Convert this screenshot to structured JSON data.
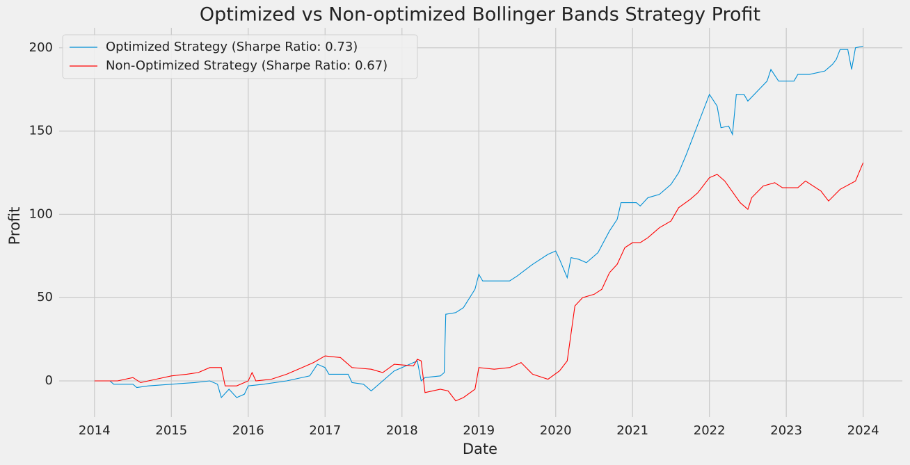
{
  "chart_data": {
    "type": "line",
    "title": "Optimized vs Non-optimized Bollinger Bands Strategy Profit",
    "x_label": "Date",
    "y_label": "Profit",
    "xlim": [
      2013.54,
      2024.51
    ],
    "ylim": [
      -21.7,
      212
    ],
    "xticks": [
      2014,
      2015,
      2016,
      2017,
      2018,
      2019,
      2020,
      2021,
      2022,
      2023,
      2024
    ],
    "yticks": [
      0,
      50,
      100,
      150,
      200
    ],
    "grid": true,
    "legend": "upper left",
    "series": [
      {
        "name": "Optimized Strategy (Sharpe Ratio: 0.73)",
        "color": "#008fd5",
        "x": [
          2014.0,
          2014.2,
          2014.25,
          2014.5,
          2014.55,
          2014.7,
          2015.0,
          2015.3,
          2015.5,
          2015.6,
          2015.65,
          2015.75,
          2015.85,
          2015.95,
          2016.0,
          2016.2,
          2016.5,
          2016.8,
          2016.9,
          2017.0,
          2017.05,
          2017.3,
          2017.35,
          2017.5,
          2017.6,
          2017.9,
          2018.2,
          2018.25,
          2018.3,
          2018.5,
          2018.55,
          2018.57,
          2018.7,
          2018.8,
          2018.95,
          2019.0,
          2019.05,
          2019.4,
          2019.5,
          2019.7,
          2019.9,
          2020.0,
          2020.05,
          2020.15,
          2020.2,
          2020.3,
          2020.4,
          2020.55,
          2020.7,
          2020.8,
          2020.85,
          2021.05,
          2021.1,
          2021.2,
          2021.35,
          2021.5,
          2021.6,
          2021.7,
          2021.8,
          2021.9,
          2022.0,
          2022.1,
          2022.15,
          2022.25,
          2022.3,
          2022.35,
          2022.45,
          2022.5,
          2022.75,
          2022.8,
          2022.9,
          2023.1,
          2023.15,
          2023.3,
          2023.5,
          2023.6,
          2023.65,
          2023.7,
          2023.8,
          2023.85,
          2023.9,
          2024.0
        ],
        "values": [
          0,
          0,
          -2,
          -2,
          -4,
          -3,
          -2,
          -1,
          0,
          -2,
          -10,
          -5,
          -10,
          -8,
          -3,
          -2,
          0,
          3,
          10,
          8,
          4,
          4,
          -1,
          -2,
          -6,
          6,
          12,
          0,
          2,
          3,
          5,
          40,
          41,
          44,
          55,
          64,
          60,
          60,
          63,
          70,
          76,
          78,
          73,
          62,
          74,
          73,
          71,
          77,
          90,
          97,
          107,
          107,
          105,
          110,
          112,
          118,
          125,
          136,
          148,
          160,
          172,
          165,
          152,
          153,
          148,
          172,
          172,
          168,
          180,
          187,
          180,
          180,
          184,
          184,
          186,
          190,
          193,
          199,
          199,
          187,
          200,
          201
        ]
      },
      {
        "name": "Non-Optimized Strategy (Sharpe Ratio: 0.67)",
        "color": "#ff0000",
        "x": [
          2014.0,
          2014.3,
          2014.5,
          2014.6,
          2014.8,
          2015.0,
          2015.2,
          2015.35,
          2015.5,
          2015.65,
          2015.7,
          2015.85,
          2016.0,
          2016.05,
          2016.1,
          2016.3,
          2016.5,
          2016.7,
          2016.85,
          2017.0,
          2017.2,
          2017.35,
          2017.6,
          2017.75,
          2017.9,
          2018.15,
          2018.2,
          2018.25,
          2018.3,
          2018.5,
          2018.6,
          2018.7,
          2018.8,
          2018.95,
          2019.0,
          2019.2,
          2019.4,
          2019.55,
          2019.7,
          2019.9,
          2020.05,
          2020.15,
          2020.25,
          2020.35,
          2020.5,
          2020.6,
          2020.7,
          2020.8,
          2020.9,
          2021.0,
          2021.1,
          2021.2,
          2021.35,
          2021.5,
          2021.6,
          2021.75,
          2021.85,
          2022.0,
          2022.1,
          2022.2,
          2022.4,
          2022.5,
          2022.55,
          2022.7,
          2022.85,
          2022.95,
          2023.15,
          2023.25,
          2023.45,
          2023.55,
          2023.7,
          2023.9,
          2024.0
        ],
        "values": [
          0,
          0,
          2,
          -1,
          1,
          3,
          4,
          5,
          8,
          8,
          -3,
          -3,
          0,
          5,
          0,
          1,
          4,
          8,
          11,
          15,
          14,
          8,
          7,
          5,
          10,
          9,
          13,
          12,
          -7,
          -5,
          -6,
          -12,
          -10,
          -5,
          8,
          7,
          8,
          11,
          4,
          1,
          6,
          12,
          45,
          50,
          52,
          55,
          65,
          70,
          80,
          83,
          83,
          86,
          92,
          96,
          104,
          109,
          113,
          122,
          124,
          120,
          107,
          103,
          110,
          117,
          119,
          116,
          116,
          120,
          114,
          108,
          115,
          120,
          131
        ]
      }
    ]
  }
}
